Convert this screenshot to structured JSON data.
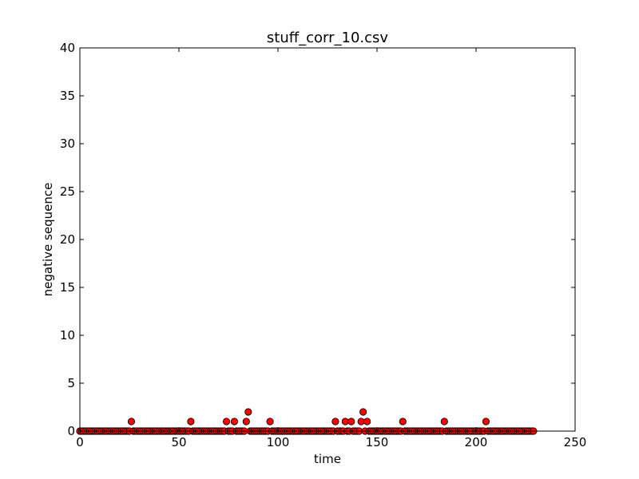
{
  "chart_data": {
    "type": "scatter",
    "title": "stuff_corr_10.csv",
    "xlabel": "time",
    "ylabel": "negative sequence",
    "xlim": [
      0,
      250
    ],
    "ylim": [
      0,
      40
    ],
    "xticks": [
      0,
      50,
      100,
      150,
      200,
      250
    ],
    "yticks": [
      0,
      5,
      10,
      15,
      20,
      25,
      30,
      35,
      40
    ],
    "xtick_labels": [
      "0",
      "50",
      "100",
      "150",
      "200",
      "250"
    ],
    "ytick_labels": [
      "0",
      "5",
      "10",
      "15",
      "20",
      "25",
      "30",
      "35",
      "40"
    ],
    "grid": false,
    "marker_color": "#ff0000",
    "marker_edge_color": "#000000",
    "x_range_zero_values": [
      0,
      229
    ],
    "points": [
      {
        "x": 26,
        "y": 1
      },
      {
        "x": 56,
        "y": 1
      },
      {
        "x": 74,
        "y": 1
      },
      {
        "x": 78,
        "y": 1
      },
      {
        "x": 84,
        "y": 1
      },
      {
        "x": 85,
        "y": 2
      },
      {
        "x": 96,
        "y": 1
      },
      {
        "x": 129,
        "y": 1
      },
      {
        "x": 134,
        "y": 1
      },
      {
        "x": 137,
        "y": 1
      },
      {
        "x": 142,
        "y": 1
      },
      {
        "x": 143,
        "y": 2
      },
      {
        "x": 145,
        "y": 1
      },
      {
        "x": 163,
        "y": 1
      },
      {
        "x": 184,
        "y": 1
      },
      {
        "x": 205,
        "y": 1
      }
    ]
  }
}
